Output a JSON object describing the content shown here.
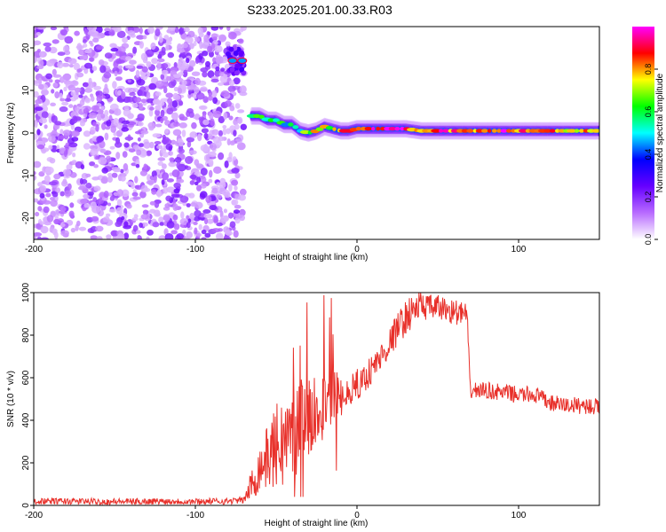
{
  "figure": {
    "title": "S233.2025.201.00.33.R03"
  },
  "chart_data": [
    {
      "type": "heatmap",
      "xlabel": "Height of straight line (km)",
      "ylabel": "Frequency (Hz)",
      "xlim": [
        -200,
        150
      ],
      "ylim": [
        -25,
        25
      ],
      "xticks": [
        -200,
        -100,
        0,
        100
      ],
      "yticks": [
        -20,
        -10,
        0,
        10,
        20
      ],
      "noise_region_x": [
        -200,
        -70
      ],
      "bright_blob": {
        "x": [
          -80,
          -70
        ],
        "y": 17,
        "level": 0.45
      },
      "ridge": {
        "x": [
          -65,
          -60,
          -55,
          -50,
          -45,
          -40,
          -35,
          -30,
          -25,
          -20,
          -15,
          -10,
          -5,
          0,
          10,
          20,
          30,
          40,
          50,
          60,
          70,
          80,
          90,
          100,
          110,
          120,
          130,
          140,
          150
        ],
        "y": [
          4,
          4,
          3,
          3,
          2,
          2,
          0.5,
          0,
          0.5,
          1.5,
          1,
          0.5,
          0.5,
          1,
          1,
          1,
          1,
          0.5,
          0.5,
          0.5,
          0.5,
          0.5,
          0.5,
          0.5,
          0.5,
          0.5,
          0.5,
          0.5,
          0.5
        ],
        "level": [
          0.55,
          0.65,
          0.6,
          0.6,
          0.55,
          0.55,
          0.6,
          0.7,
          0.75,
          0.7,
          0.75,
          0.8,
          0.8,
          0.85,
          0.95,
          0.95,
          0.9,
          0.85,
          0.85,
          0.85,
          0.85,
          0.85,
          0.9,
          0.85,
          0.85,
          0.8,
          0.8,
          0.75,
          0.75
        ]
      },
      "colorbar": {
        "label": "Normalized spectral amplitude",
        "range": [
          0,
          1
        ],
        "ticks": [
          "0.0",
          "0.2",
          "0.4",
          "0.6",
          "0.8"
        ],
        "colors": [
          "#ffffff",
          "#b86bff",
          "#6600ff",
          "#0000ff",
          "#00ffff",
          "#00ff00",
          "#ffff00",
          "#ff0000",
          "#ff00ff"
        ]
      }
    },
    {
      "type": "line",
      "xlabel": "Height of straight line (km)",
      "ylabel": "SNR (10 * v/v)",
      "xlim": [
        -200,
        150
      ],
      "ylim": [
        0,
        1000
      ],
      "xticks": [
        -200,
        -100,
        0,
        100
      ],
      "yticks": [
        0,
        200,
        400,
        600,
        800,
        1000
      ],
      "color": "#e8302a",
      "series": [
        {
          "x": [
            -200,
            -180,
            -160,
            -140,
            -120,
            -100,
            -80,
            -70,
            -65,
            -60,
            -55,
            -50,
            -45,
            -40,
            -35,
            -30,
            -25,
            -20,
            -15,
            -10,
            -5,
            0,
            5,
            10,
            15,
            20,
            25,
            30,
            35,
            40,
            45,
            50,
            55,
            60,
            65,
            68,
            70,
            75,
            80,
            90,
            100,
            110,
            120,
            130,
            140,
            150
          ],
          "values": [
            20,
            20,
            18,
            18,
            20,
            18,
            20,
            25,
            100,
            180,
            230,
            280,
            300,
            340,
            380,
            420,
            450,
            470,
            500,
            510,
            540,
            560,
            600,
            650,
            700,
            760,
            830,
            880,
            920,
            940,
            930,
            930,
            920,
            910,
            900,
            900,
            540,
            540,
            540,
            530,
            520,
            520,
            480,
            470,
            470,
            460
          ],
          "noise_amp": [
            15,
            15,
            15,
            15,
            15,
            15,
            15,
            15,
            80,
            120,
            150,
            200,
            220,
            220,
            220,
            200,
            180,
            160,
            150,
            120,
            80,
            80,
            70,
            70,
            70,
            70,
            80,
            80,
            80,
            70,
            60,
            60,
            60,
            60,
            60,
            60,
            40,
            40,
            40,
            40,
            40,
            40,
            40,
            40,
            40,
            40
          ]
        }
      ]
    }
  ]
}
